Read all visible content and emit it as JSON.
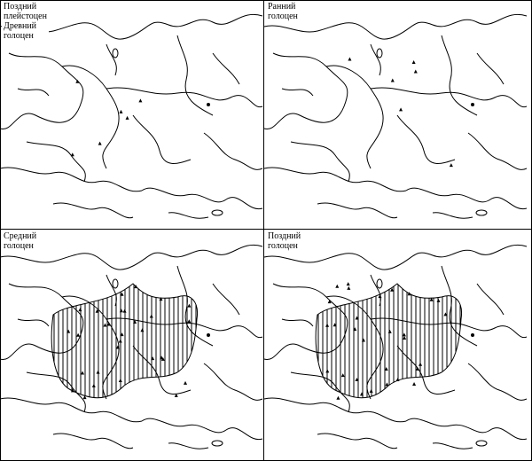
{
  "panels": [
    {
      "id": "late-pleistocene-early-holocene",
      "label_lines": [
        "Поздний",
        "плейстоцен",
        "Древний",
        "голоцен"
      ],
      "hatched_range": false
    },
    {
      "id": "early-holocene",
      "label_lines": [
        "Ранний",
        "голоцен"
      ],
      "hatched_range": false
    },
    {
      "id": "middle-holocene",
      "label_lines": [
        "Средний",
        "голоцен"
      ],
      "hatched_range": true
    },
    {
      "id": "late-holocene",
      "label_lines": [
        "Поздний",
        "голоцен"
      ],
      "hatched_range": true
    }
  ],
  "colors": {
    "line": "#000000",
    "background": "#ffffff"
  },
  "map_symbols": [
    "triangle-site-marker",
    "vertical-hatched-range",
    "outline-coastline-rivers"
  ]
}
